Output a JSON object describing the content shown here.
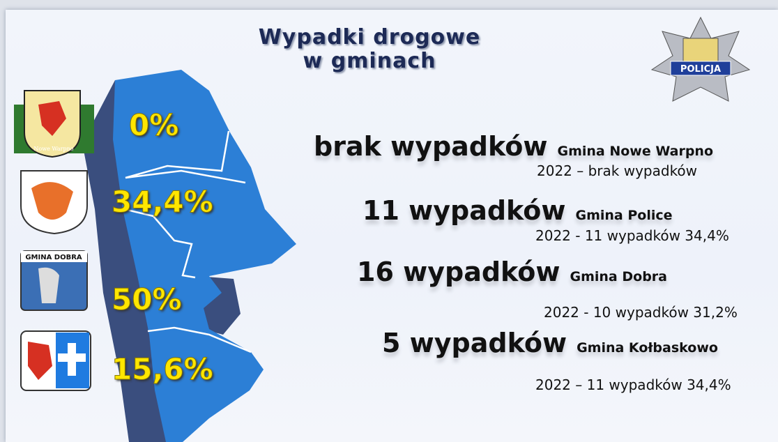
{
  "header": {
    "title_lines": [
      "Wypadki drogowe",
      "w gminach"
    ],
    "badge": "POLICJA"
  },
  "map": {
    "labels": [
      "0%",
      "34,4%",
      "50%",
      "15,6%"
    ]
  },
  "emblems": {
    "nowe_warpno": "Nowe Warpno",
    "dobra": "GMINA DOBRA"
  },
  "rows": [
    {
      "headline": "brak wypadków",
      "gmina": "Gmina Nowe Warpno",
      "note": "2022 – brak wypadków"
    },
    {
      "headline": "11 wypadków",
      "gmina": "Gmina Police",
      "note": "2022 - 11 wypadków 34,4%"
    },
    {
      "headline": "16 wypadków",
      "gmina": "Gmina Dobra",
      "note": "2022 - 10 wypadków 31,2%"
    },
    {
      "headline": "5 wypadków",
      "gmina": "Gmina Kołbaskowo",
      "note": "2022 – 11 wypadków 34,4%"
    }
  ]
}
